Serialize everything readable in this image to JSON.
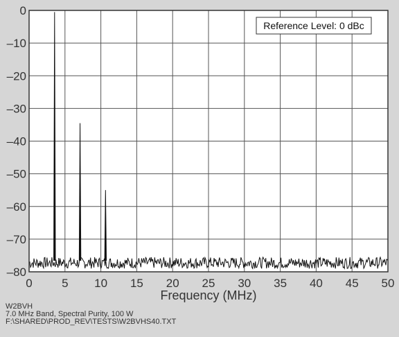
{
  "chart_data": {
    "type": "line",
    "title": "",
    "xlabel": "Frequency (MHz)",
    "ylabel": "",
    "xlim": [
      0,
      50
    ],
    "ylim": [
      -80,
      0
    ],
    "x_ticks": [
      "0",
      "5",
      "10",
      "15",
      "20",
      "25",
      "30",
      "35",
      "40",
      "45",
      "50"
    ],
    "y_ticks": [
      "0",
      "–10",
      "–20",
      "–30",
      "–40",
      "–50",
      "–60",
      "–70",
      "–80"
    ],
    "grid": true,
    "annotation": "Reference Level: 0 dBc",
    "noise_floor": -76.5,
    "series": [
      {
        "values": [
          {
            "x": 3.55,
            "y": -0.5
          },
          {
            "x": 7.1,
            "y": -34.5
          },
          {
            "x": 10.65,
            "y": -55
          }
        ]
      }
    ],
    "colors": {
      "background": "#d6d6d6",
      "plot_bg": "#ffffff",
      "grid": "#555555",
      "trace": "#111111"
    }
  },
  "footer": {
    "line1": "W2BVH",
    "line2": "7.0 MHz Band, Spectral Purity, 100 W",
    "line3": "F:\\SHARED\\PROD_REV\\TESTS\\W2BVHS40.TXT"
  }
}
